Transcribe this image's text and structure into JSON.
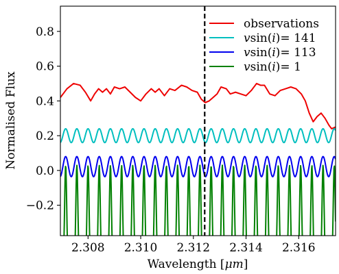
{
  "chart_data": {
    "type": "line",
    "xlabel_prefix": "Wavelength [",
    "xlabel_unit": "μm",
    "xlabel_suffix": "]",
    "ylabel": "Normalised Flux",
    "xlim": [
      2.30695,
      2.3174
    ],
    "ylim": [
      -0.375,
      0.945
    ],
    "xticks": [
      2.308,
      2.31,
      2.312,
      2.314,
      2.316
    ],
    "xtick_labels": [
      "2.308",
      "2.310",
      "2.312",
      "2.314",
      "2.316"
    ],
    "yticks": [
      -0.2,
      0.0,
      0.2,
      0.4,
      0.6,
      0.8
    ],
    "ytick_labels": [
      "−0.2",
      "0.0",
      "0.2",
      "0.4",
      "0.6",
      "0.8"
    ],
    "vline_x": 2.31243,
    "grid": false,
    "legend_placement": "top-right",
    "series": [
      {
        "name": "observations",
        "color": "#ee0000",
        "legend_parts": [
          "observations"
        ],
        "points": [
          [
            2.30695,
            0.42
          ],
          [
            2.3072,
            0.47
          ],
          [
            2.30745,
            0.5
          ],
          [
            2.3077,
            0.49
          ],
          [
            2.3079,
            0.45
          ],
          [
            2.3081,
            0.4
          ],
          [
            2.30825,
            0.44
          ],
          [
            2.3084,
            0.47
          ],
          [
            2.30855,
            0.45
          ],
          [
            2.3087,
            0.47
          ],
          [
            2.30885,
            0.44
          ],
          [
            2.309,
            0.48
          ],
          [
            2.3092,
            0.47
          ],
          [
            2.3094,
            0.48
          ],
          [
            2.3096,
            0.45
          ],
          [
            2.3098,
            0.42
          ],
          [
            2.31,
            0.4
          ],
          [
            2.3102,
            0.44
          ],
          [
            2.3104,
            0.47
          ],
          [
            2.31055,
            0.45
          ],
          [
            2.3107,
            0.47
          ],
          [
            2.3109,
            0.43
          ],
          [
            2.3111,
            0.47
          ],
          [
            2.3113,
            0.46
          ],
          [
            2.31155,
            0.49
          ],
          [
            2.31175,
            0.48
          ],
          [
            2.31195,
            0.46
          ],
          [
            2.31215,
            0.45
          ],
          [
            2.3123,
            0.41
          ],
          [
            2.31245,
            0.39
          ],
          [
            2.3126,
            0.4
          ],
          [
            2.31275,
            0.42
          ],
          [
            2.3129,
            0.44
          ],
          [
            2.31305,
            0.48
          ],
          [
            2.31325,
            0.47
          ],
          [
            2.3134,
            0.44
          ],
          [
            2.3136,
            0.45
          ],
          [
            2.3138,
            0.44
          ],
          [
            2.314,
            0.43
          ],
          [
            2.3142,
            0.46
          ],
          [
            2.3144,
            0.5
          ],
          [
            2.31455,
            0.49
          ],
          [
            2.3147,
            0.49
          ],
          [
            2.3149,
            0.44
          ],
          [
            2.3151,
            0.43
          ],
          [
            2.3153,
            0.46
          ],
          [
            2.3155,
            0.47
          ],
          [
            2.3157,
            0.48
          ],
          [
            2.3159,
            0.47
          ],
          [
            2.3161,
            0.44
          ],
          [
            2.31625,
            0.4
          ],
          [
            2.3164,
            0.33
          ],
          [
            2.31655,
            0.28
          ],
          [
            2.3167,
            0.31
          ],
          [
            2.31685,
            0.33
          ],
          [
            2.317,
            0.3
          ],
          [
            2.31715,
            0.26
          ],
          [
            2.31725,
            0.24
          ],
          [
            2.3174,
            0.25
          ]
        ]
      },
      {
        "name": "vsin(i)= 141",
        "color": "#00bfbf",
        "legend_parts": [
          "v",
          "sin(",
          "i",
          ")= 141"
        ],
        "model": {
          "offset": 0.2,
          "amplitude": 0.04,
          "period": 0.000425,
          "anchor": 2.308,
          "sharpness": 1
        }
      },
      {
        "name": "vsin(i)= 113",
        "color": "#0000ee",
        "legend_parts": [
          "v",
          "sin(",
          "i",
          ")= 113"
        ],
        "model": {
          "offset": 0.022,
          "amplitude": 0.058,
          "period": 0.000425,
          "anchor": 2.308,
          "sharpness": 1
        }
      },
      {
        "name": "vsin(i)= 1",
        "color": "#008000",
        "legend_parts": [
          "v",
          "sin(",
          "i",
          ")= 1"
        ],
        "model": {
          "offset": -0.255,
          "amplitude": 0.285,
          "period": 0.000425,
          "anchor": 2.308,
          "sharpness": 6
        }
      }
    ]
  }
}
